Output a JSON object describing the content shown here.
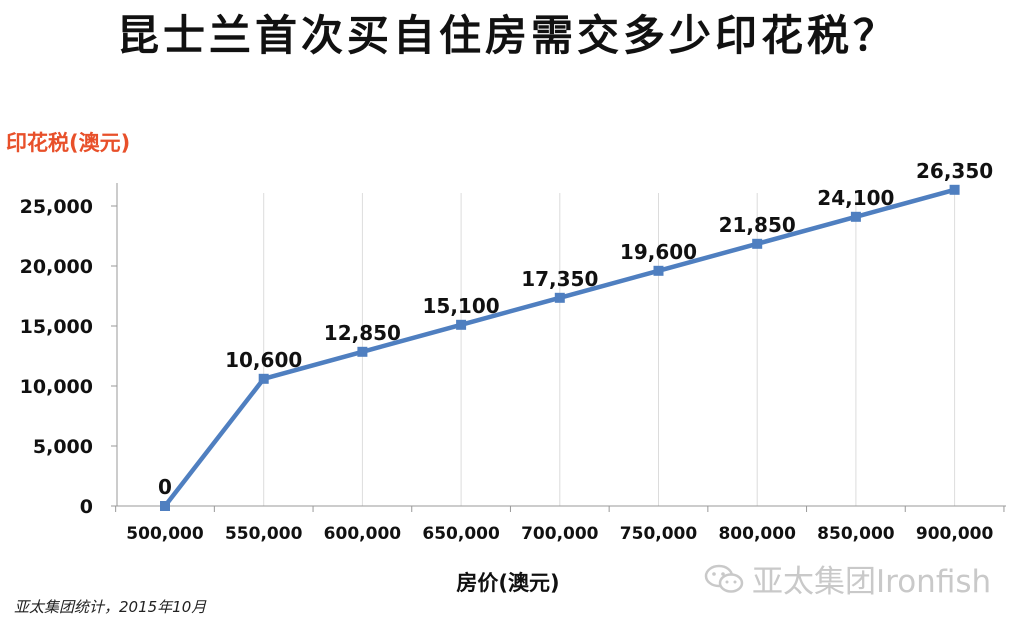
{
  "title": "昆士兰首次买自住房需交多少印花税？",
  "source_note": "亚太集团统计，2015年10月",
  "watermark": {
    "text": "亚太集团Ironfish",
    "icon": "wechat-icon"
  },
  "colors": {
    "line": "#4f7fc0",
    "ylabel": "#e8502a",
    "text": "#111111",
    "watermark": "#c9c9c9"
  },
  "chart_data": {
    "type": "line",
    "ylabel": "印花税(澳元)",
    "xlabel": "房价(澳元)",
    "categories": [
      "500,000",
      "550,000",
      "600,000",
      "650,000",
      "700,000",
      "750,000",
      "800,000",
      "850,000",
      "900,000"
    ],
    "x": [
      500000,
      550000,
      600000,
      650000,
      700000,
      750000,
      800000,
      850000,
      900000
    ],
    "values": [
      0,
      10600,
      12850,
      15100,
      17350,
      19600,
      21850,
      24100,
      26350
    ],
    "data_labels": [
      "0",
      "10,600",
      "12,850",
      "15,100",
      "17,350",
      "19,600",
      "21,850",
      "24,100",
      "26,350"
    ],
    "y_ticks": [
      0,
      5000,
      10000,
      15000,
      20000,
      25000
    ],
    "y_tick_labels": [
      "0",
      "5,000",
      "10,000",
      "15,000",
      "20,000",
      "25,000"
    ],
    "ylim": [
      0,
      28000
    ],
    "grid": "vertical lines at categories",
    "legend": "none"
  }
}
